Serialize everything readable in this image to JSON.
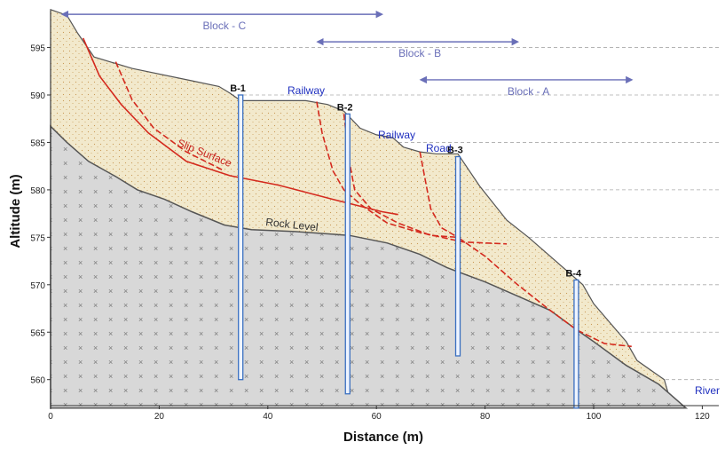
{
  "axes": {
    "x_title": "Distance (m)",
    "y_title": "Altitude (m)",
    "x_ticks": [
      "0",
      "20",
      "40",
      "60",
      "80",
      "100",
      "120"
    ],
    "y_ticks": [
      "560",
      "565",
      "570",
      "575",
      "580",
      "585",
      "590",
      "595"
    ]
  },
  "blocks": [
    {
      "label": "Block - C",
      "from": 3,
      "to": 61,
      "y": 598.5
    },
    {
      "label": "Block - B",
      "from": 50,
      "to": 86,
      "y": 595.6
    },
    {
      "label": "Block - A",
      "from": 69,
      "to": 107,
      "y": 591.6
    }
  ],
  "boreholes": [
    {
      "label": "B-1",
      "x": 35,
      "top": 590,
      "bottom": 560
    },
    {
      "label": "B-2",
      "x": 54.7,
      "top": 588,
      "bottom": 558.5
    },
    {
      "label": "B-3",
      "x": 75,
      "top": 583.5,
      "bottom": 562.5
    },
    {
      "label": "B-4",
      "x": 96.8,
      "top": 570.5,
      "bottom": 557
    }
  ],
  "annotations": {
    "slip_surface": "Slip Surface",
    "rock_level": "Rock Level",
    "railway_1": "Railway",
    "railway_2": "Railway",
    "road": "Road",
    "river": "River"
  },
  "colors": {
    "soil": "#f2e9cc",
    "soil_dots": "#c99a55",
    "rock": "#d8d8d8",
    "slip": "#d42a1e",
    "ground_line": "#555555",
    "borehole": "#3a6fc0",
    "text_blue": "#1f2fbf",
    "block_arrow": "#6a6fb8"
  }
}
